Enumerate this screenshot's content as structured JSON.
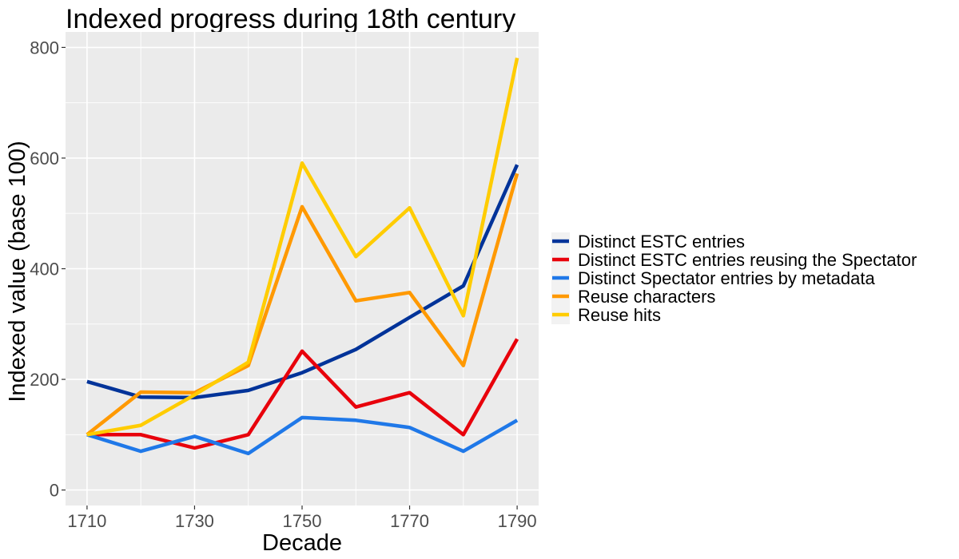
{
  "chart_data": {
    "type": "line",
    "title": "Indexed progress during 18th century",
    "xlabel": "Decade",
    "ylabel": "Indexed value (base 100)",
    "x": [
      1710,
      1720,
      1730,
      1740,
      1750,
      1760,
      1770,
      1780,
      1790
    ],
    "xticks": [
      1710,
      1730,
      1750,
      1770,
      1790
    ],
    "yticks": [
      0,
      200,
      400,
      600,
      800
    ],
    "xlim": [
      1706,
      1794
    ],
    "ylim": [
      -28,
      828
    ],
    "grid": true,
    "legend_position": "right",
    "panel_background": "#ebebeb",
    "series": [
      {
        "name": "Distinct ESTC entries",
        "color": "#003399",
        "values": [
          196,
          168,
          167,
          180,
          212,
          254,
          312,
          369,
          588
        ]
      },
      {
        "name": "Distinct ESTC entries reusing the Spectator",
        "color": "#e8000b",
        "values": [
          100,
          100,
          76,
          100,
          251,
          150,
          176,
          100,
          273
        ]
      },
      {
        "name": "Distinct Spectator entries by metadata",
        "color": "#1f78e8",
        "values": [
          100,
          70,
          97,
          66,
          131,
          126,
          113,
          70,
          126
        ]
      },
      {
        "name": "Reuse characters",
        "color": "#ff9900",
        "values": [
          100,
          177,
          176,
          225,
          512,
          342,
          357,
          225,
          572
        ]
      },
      {
        "name": "Reuse hits",
        "color": "#ffcc00",
        "values": [
          100,
          117,
          172,
          231,
          591,
          422,
          510,
          315,
          781
        ]
      }
    ]
  }
}
